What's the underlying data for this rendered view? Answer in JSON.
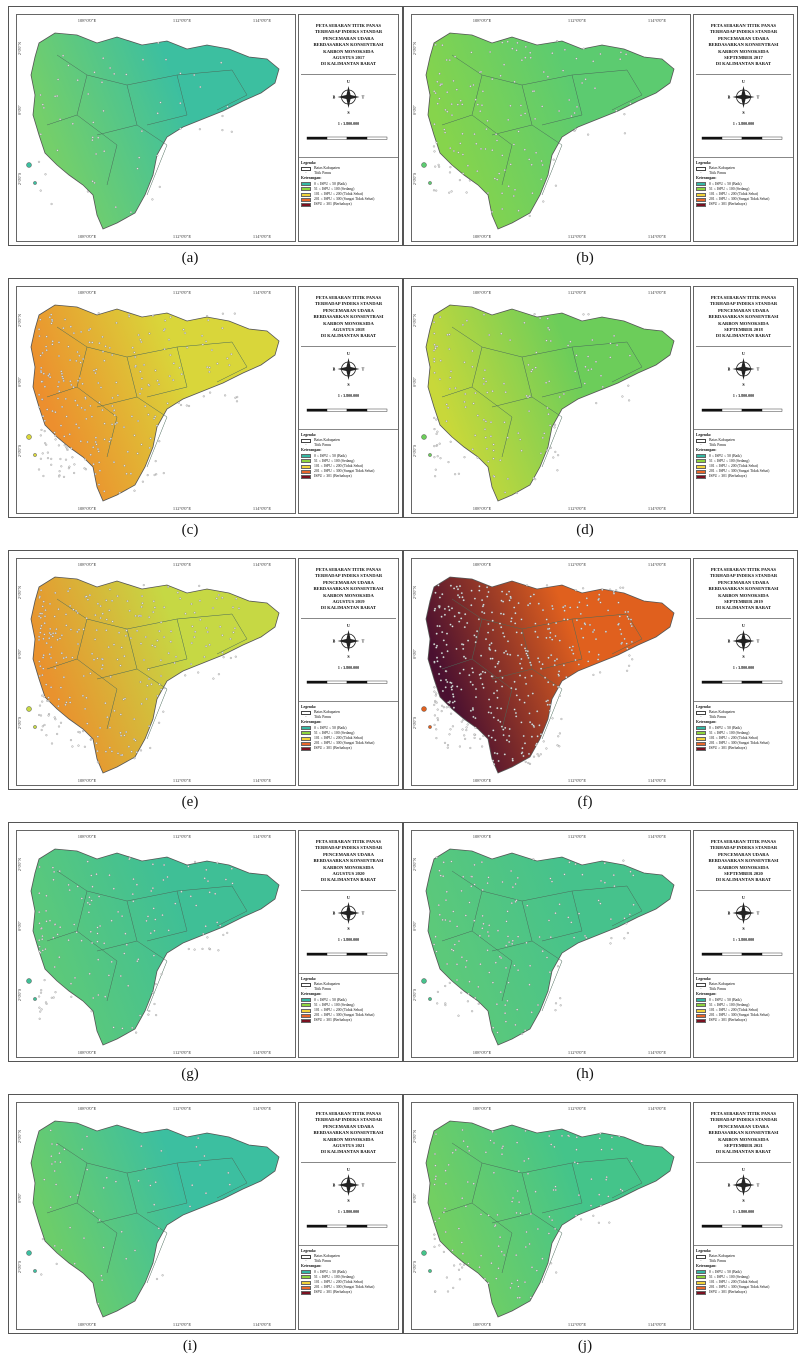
{
  "legend": {
    "legenda_label": "Legenda:",
    "batas_label": "Batas Kabupaten",
    "titik_label": "Titik Panas",
    "keterangan_label": "Keterangan:",
    "classes": [
      {
        "label": "0 ≤ ISPU ≤ 50 (Baik)",
        "color": "#35b8a4"
      },
      {
        "label": "51 ≤ ISPU ≤ 100 (Sedang)",
        "color": "#8fd43e"
      },
      {
        "label": "101 ≤ ISPU ≤ 200 (Tidak Sehat)",
        "color": "#f0d23a"
      },
      {
        "label": "201 ≤ ISPU ≤ 300 (Sangat Tidak Sehat)",
        "color": "#e8662a"
      },
      {
        "label": "ISPU ≥ 301 (Berbahaya)",
        "color": "#7a1020"
      }
    ]
  },
  "scale_text": "1 : 3.800.000",
  "compass_letters": [
    "U",
    "S",
    "B",
    "T"
  ],
  "coord_labels": {
    "lon": [
      "108°0'0\"E",
      "112°0'0\"E",
      "114°0'0\"E"
    ],
    "lat": [
      "2°0'0\"N",
      "0°0'0\"",
      "2°0'0\"S"
    ]
  },
  "panels": [
    {
      "caption": "(a)",
      "title": [
        "PETA SEBARAN TITIK PANAS",
        "TERHADAP INDEKS STANDAR",
        "PENCEMARAN UDARA",
        "BERDASARKAN KONSENTRASI",
        "KARBON MONOKSIDA",
        "AGUSTUS 2017",
        "DI KALIMANTAN BARAT"
      ],
      "fill": "#3cbfa0",
      "west": "#74cf6a",
      "hotspots": "low"
    },
    {
      "caption": "(b)",
      "title": [
        "PETA SEBARAN TITIK PANAS",
        "TERHADAP INDEKS STANDAR",
        "PENCEMARAN UDARA",
        "BERDASARKAN KONSENTRASI",
        "KARBON MONOKSIDA",
        "SEPTEMBER 2017",
        "DI KALIMANTAN BARAT"
      ],
      "fill": "#5ccb70",
      "west": "#86d44c",
      "hotspots": "mid"
    },
    {
      "caption": "(c)",
      "title": [
        "PETA SEBARAN TITIK PANAS",
        "TERHADAP INDEKS STANDAR",
        "PENCEMARAN UDARA",
        "BERDASARKAN KONSENTRASI",
        "KARBON MONOKSIDA",
        "AGUSTUS 2018",
        "DI KALIMANTAN BARAT"
      ],
      "fill": "#d9d63a",
      "west": "#ec8f2e",
      "hotspots": "high"
    },
    {
      "caption": "(d)",
      "title": [
        "PETA SEBARAN TITIK PANAS",
        "TERHADAP INDEKS STANDAR",
        "PENCEMARAN UDARA",
        "BERDASARKAN KONSENTRASI",
        "KARBON MONOKSIDA",
        "SEPTEMBER 2018",
        "DI KALIMANTAN BARAT"
      ],
      "fill": "#6ccd5a",
      "west": "#c8d83a",
      "hotspots": "mid"
    },
    {
      "caption": "(e)",
      "title": [
        "PETA SEBARAN TITIK PANAS",
        "TERHADAP INDEKS STANDAR",
        "PENCEMARAN UDARA",
        "BERDASARKAN KONSENTRASI",
        "KARBON MONOKSIDA",
        "AGUSTUS 2019",
        "DI KALIMANTAN BARAT"
      ],
      "fill": "#c6d844",
      "west": "#e9922e",
      "hotspots": "high"
    },
    {
      "caption": "(f)",
      "title": [
        "PETA SEBARAN TITIK PANAS",
        "TERHADAP INDEKS STANDAR",
        "PENCEMARAN UDARA",
        "BERDASARKAN KONSENTRASI",
        "KARBON MONOKSIDA",
        "SEPTEMBER 2019",
        "DI KALIMANTAN BARAT"
      ],
      "fill": "#e0601e",
      "west": "#4a1030",
      "hotspots": "extreme"
    },
    {
      "caption": "(g)",
      "title": [
        "PETA SEBARAN TITIK PANAS",
        "TERHADAP INDEKS STANDAR",
        "PENCEMARAN UDARA",
        "BERDASARKAN KONSENTRASI",
        "KARBON MONOKSIDA",
        "AGUSTUS 2020",
        "DI KALIMANTAN BARAT"
      ],
      "fill": "#3fbf96",
      "west": "#5cc97a",
      "hotspots": "mid"
    },
    {
      "caption": "(h)",
      "title": [
        "PETA SEBARAN TITIK PANAS",
        "TERHADAP INDEKS STANDAR",
        "PENCEMARAN UDARA",
        "BERDASARKAN KONSENTRASI",
        "KARBON MONOKSIDA",
        "SEPTEMBER 2020",
        "DI KALIMANTAN BARAT"
      ],
      "fill": "#46c28c",
      "west": "#5cc97a",
      "hotspots": "mid"
    },
    {
      "caption": "(i)",
      "title": [
        "PETA SEBARAN TITIK PANAS",
        "TERHADAP INDEKS STANDAR",
        "PENCEMARAN UDARA",
        "BERDASARKAN KONSENTRASI",
        "KARBON MONOKSIDA",
        "AGUSTUS 2021",
        "DI KALIMANTAN BARAT"
      ],
      "fill": "#3cbfa0",
      "west": "#6ccd6a",
      "hotspots": "low"
    },
    {
      "caption": "(j)",
      "title": [
        "PETA SEBARAN TITIK PANAS",
        "TERHADAP INDEKS STANDAR",
        "PENCEMARAN UDARA",
        "BERDASARKAN KONSENTRASI",
        "KARBON MONOKSIDA",
        "SEPTEMBER 2021",
        "DI KALIMANTAN BARAT"
      ],
      "fill": "#44c48a",
      "west": "#72cf62",
      "hotspots": "mid"
    }
  ]
}
